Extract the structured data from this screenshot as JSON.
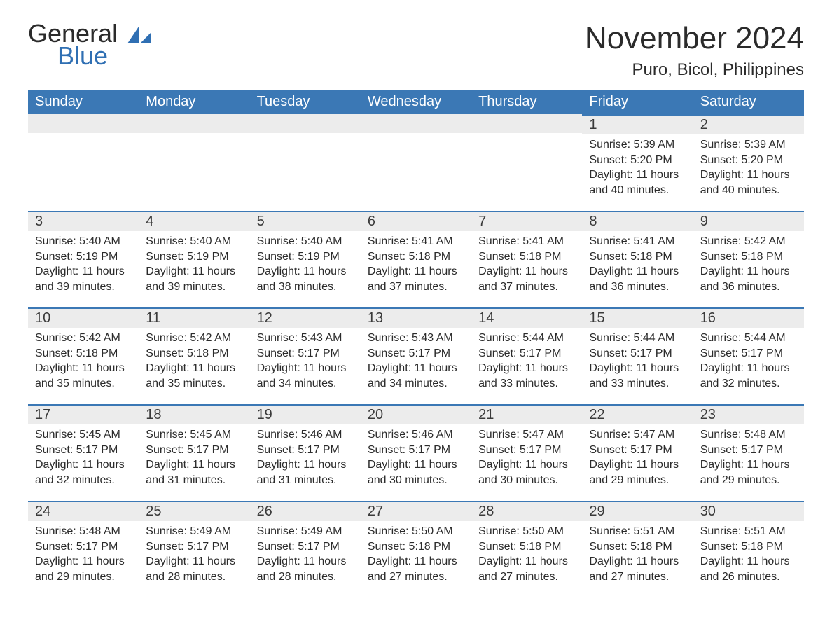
{
  "logo": {
    "general": "General",
    "blue": "Blue"
  },
  "title": {
    "month": "November 2024",
    "location": "Puro, Bicol, Philippines"
  },
  "columns": [
    "Sunday",
    "Monday",
    "Tuesday",
    "Wednesday",
    "Thursday",
    "Friday",
    "Saturday"
  ],
  "styling": {
    "header_bg": "#3b78b5",
    "header_text_color": "#ffffff",
    "row_separator_color": "#3b78b5",
    "daynum_bg": "#ececec",
    "body_text_color": "#2b2b2b",
    "logo_blue": "#2f6fb3",
    "background": "#ffffff",
    "title_fontsize": 44,
    "location_fontsize": 24,
    "header_fontsize": 20,
    "daynum_fontsize": 20,
    "body_fontsize": 16
  },
  "weeks": [
    [
      null,
      null,
      null,
      null,
      null,
      {
        "num": "1",
        "sunrise": "Sunrise: 5:39 AM",
        "sunset": "Sunset: 5:20 PM",
        "daylight": "Daylight: 11 hours and 40 minutes."
      },
      {
        "num": "2",
        "sunrise": "Sunrise: 5:39 AM",
        "sunset": "Sunset: 5:20 PM",
        "daylight": "Daylight: 11 hours and 40 minutes."
      }
    ],
    [
      {
        "num": "3",
        "sunrise": "Sunrise: 5:40 AM",
        "sunset": "Sunset: 5:19 PM",
        "daylight": "Daylight: 11 hours and 39 minutes."
      },
      {
        "num": "4",
        "sunrise": "Sunrise: 5:40 AM",
        "sunset": "Sunset: 5:19 PM",
        "daylight": "Daylight: 11 hours and 39 minutes."
      },
      {
        "num": "5",
        "sunrise": "Sunrise: 5:40 AM",
        "sunset": "Sunset: 5:19 PM",
        "daylight": "Daylight: 11 hours and 38 minutes."
      },
      {
        "num": "6",
        "sunrise": "Sunrise: 5:41 AM",
        "sunset": "Sunset: 5:18 PM",
        "daylight": "Daylight: 11 hours and 37 minutes."
      },
      {
        "num": "7",
        "sunrise": "Sunrise: 5:41 AM",
        "sunset": "Sunset: 5:18 PM",
        "daylight": "Daylight: 11 hours and 37 minutes."
      },
      {
        "num": "8",
        "sunrise": "Sunrise: 5:41 AM",
        "sunset": "Sunset: 5:18 PM",
        "daylight": "Daylight: 11 hours and 36 minutes."
      },
      {
        "num": "9",
        "sunrise": "Sunrise: 5:42 AM",
        "sunset": "Sunset: 5:18 PM",
        "daylight": "Daylight: 11 hours and 36 minutes."
      }
    ],
    [
      {
        "num": "10",
        "sunrise": "Sunrise: 5:42 AM",
        "sunset": "Sunset: 5:18 PM",
        "daylight": "Daylight: 11 hours and 35 minutes."
      },
      {
        "num": "11",
        "sunrise": "Sunrise: 5:42 AM",
        "sunset": "Sunset: 5:18 PM",
        "daylight": "Daylight: 11 hours and 35 minutes."
      },
      {
        "num": "12",
        "sunrise": "Sunrise: 5:43 AM",
        "sunset": "Sunset: 5:17 PM",
        "daylight": "Daylight: 11 hours and 34 minutes."
      },
      {
        "num": "13",
        "sunrise": "Sunrise: 5:43 AM",
        "sunset": "Sunset: 5:17 PM",
        "daylight": "Daylight: 11 hours and 34 minutes."
      },
      {
        "num": "14",
        "sunrise": "Sunrise: 5:44 AM",
        "sunset": "Sunset: 5:17 PM",
        "daylight": "Daylight: 11 hours and 33 minutes."
      },
      {
        "num": "15",
        "sunrise": "Sunrise: 5:44 AM",
        "sunset": "Sunset: 5:17 PM",
        "daylight": "Daylight: 11 hours and 33 minutes."
      },
      {
        "num": "16",
        "sunrise": "Sunrise: 5:44 AM",
        "sunset": "Sunset: 5:17 PM",
        "daylight": "Daylight: 11 hours and 32 minutes."
      }
    ],
    [
      {
        "num": "17",
        "sunrise": "Sunrise: 5:45 AM",
        "sunset": "Sunset: 5:17 PM",
        "daylight": "Daylight: 11 hours and 32 minutes."
      },
      {
        "num": "18",
        "sunrise": "Sunrise: 5:45 AM",
        "sunset": "Sunset: 5:17 PM",
        "daylight": "Daylight: 11 hours and 31 minutes."
      },
      {
        "num": "19",
        "sunrise": "Sunrise: 5:46 AM",
        "sunset": "Sunset: 5:17 PM",
        "daylight": "Daylight: 11 hours and 31 minutes."
      },
      {
        "num": "20",
        "sunrise": "Sunrise: 5:46 AM",
        "sunset": "Sunset: 5:17 PM",
        "daylight": "Daylight: 11 hours and 30 minutes."
      },
      {
        "num": "21",
        "sunrise": "Sunrise: 5:47 AM",
        "sunset": "Sunset: 5:17 PM",
        "daylight": "Daylight: 11 hours and 30 minutes."
      },
      {
        "num": "22",
        "sunrise": "Sunrise: 5:47 AM",
        "sunset": "Sunset: 5:17 PM",
        "daylight": "Daylight: 11 hours and 29 minutes."
      },
      {
        "num": "23",
        "sunrise": "Sunrise: 5:48 AM",
        "sunset": "Sunset: 5:17 PM",
        "daylight": "Daylight: 11 hours and 29 minutes."
      }
    ],
    [
      {
        "num": "24",
        "sunrise": "Sunrise: 5:48 AM",
        "sunset": "Sunset: 5:17 PM",
        "daylight": "Daylight: 11 hours and 29 minutes."
      },
      {
        "num": "25",
        "sunrise": "Sunrise: 5:49 AM",
        "sunset": "Sunset: 5:17 PM",
        "daylight": "Daylight: 11 hours and 28 minutes."
      },
      {
        "num": "26",
        "sunrise": "Sunrise: 5:49 AM",
        "sunset": "Sunset: 5:17 PM",
        "daylight": "Daylight: 11 hours and 28 minutes."
      },
      {
        "num": "27",
        "sunrise": "Sunrise: 5:50 AM",
        "sunset": "Sunset: 5:18 PM",
        "daylight": "Daylight: 11 hours and 27 minutes."
      },
      {
        "num": "28",
        "sunrise": "Sunrise: 5:50 AM",
        "sunset": "Sunset: 5:18 PM",
        "daylight": "Daylight: 11 hours and 27 minutes."
      },
      {
        "num": "29",
        "sunrise": "Sunrise: 5:51 AM",
        "sunset": "Sunset: 5:18 PM",
        "daylight": "Daylight: 11 hours and 27 minutes."
      },
      {
        "num": "30",
        "sunrise": "Sunrise: 5:51 AM",
        "sunset": "Sunset: 5:18 PM",
        "daylight": "Daylight: 11 hours and 26 minutes."
      }
    ]
  ]
}
